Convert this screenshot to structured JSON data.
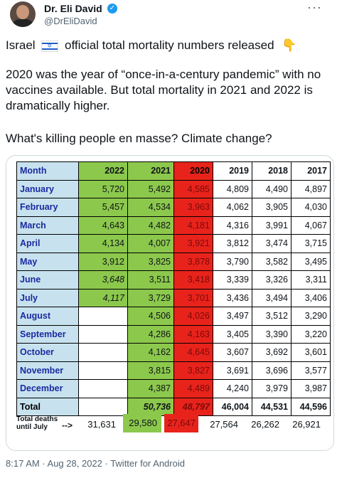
{
  "author": {
    "name": "Dr. Eli David",
    "handle": "@DrEliDavid"
  },
  "tweet": {
    "line1_pre": "Israel",
    "line1_post": "official total mortality numbers released",
    "para2": "2020 was the year of “once-in-a-century pandemic” with no vaccines available. But total mortality in 2021 and 2022 is dramatically higher.",
    "para3": "What's killing people en masse? Climate change?"
  },
  "chart_data": {
    "type": "table",
    "columns": [
      "Month",
      "2022",
      "2021",
      "2020",
      "2019",
      "2018",
      "2017"
    ],
    "rows": [
      [
        "January",
        "5,720",
        "5,492",
        "4,585",
        "4,809",
        "4,490",
        "4,897"
      ],
      [
        "February",
        "5,457",
        "4,534",
        "3,963",
        "4,062",
        "3,905",
        "4,030"
      ],
      [
        "March",
        "4,643",
        "4,482",
        "4,181",
        "4,316",
        "3,991",
        "4,067"
      ],
      [
        "April",
        "4,134",
        "4,007",
        "3,921",
        "3,812",
        "3,474",
        "3,715"
      ],
      [
        "May",
        "3,912",
        "3,825",
        "3,878",
        "3,790",
        "3,582",
        "3,495"
      ],
      [
        "June",
        "3,648",
        "3,511",
        "3,418",
        "3,339",
        "3,326",
        "3,311"
      ],
      [
        "July",
        "4,117",
        "3,729",
        "3,701",
        "3,436",
        "3,494",
        "3,406"
      ],
      [
        "August",
        "",
        "4,506",
        "4,026",
        "3,497",
        "3,512",
        "3,290"
      ],
      [
        "September",
        "",
        "4,286",
        "4,163",
        "3,405",
        "3,390",
        "3,220"
      ],
      [
        "October",
        "",
        "4,162",
        "4,645",
        "3,607",
        "3,692",
        "3,601"
      ],
      [
        "November",
        "",
        "3,815",
        "3,827",
        "3,691",
        "3,696",
        "3,577"
      ],
      [
        "December",
        "",
        "4,387",
        "4,489",
        "4,240",
        "3,979",
        "3,987"
      ]
    ],
    "total": [
      "Total",
      "",
      "50,736",
      "48,797",
      "46,004",
      "44,531",
      "44,596"
    ],
    "deaths_label": "Total deaths until July",
    "deaths_arrow": "-->",
    "deaths": [
      "31,631",
      "29,580",
      "27,647",
      "27,564",
      "26,262",
      "26,921"
    ]
  },
  "footer": {
    "timestamp": "8:17 AM · Aug 28, 2022 · Twitter for Android"
  },
  "icons": [
    "verified-badge-icon",
    "more-options-icon",
    "israel-flag-icon",
    "pointing-hand-icon"
  ]
}
